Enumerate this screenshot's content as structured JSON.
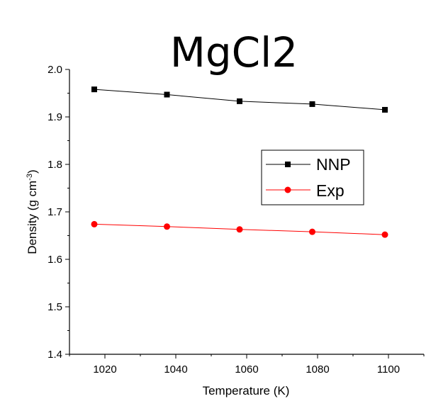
{
  "chart_data": {
    "type": "line",
    "title": "MgCl2",
    "xlabel": "Temperature (K)",
    "ylabel_main": "Density (g cm",
    "ylabel_sup": "-3",
    "ylabel_close": ")",
    "xlim": [
      1010,
      1110
    ],
    "ylim": [
      1.4,
      2.0
    ],
    "xticks": [
      1020,
      1040,
      1060,
      1080,
      1100
    ],
    "yticks": [
      1.4,
      1.5,
      1.6,
      1.7,
      1.8,
      1.9,
      2.0
    ],
    "ytick_labels": [
      "1.4",
      "1.5",
      "1.6",
      "1.7",
      "1.8",
      "1.9",
      "2.0"
    ],
    "legend_position": "right-center",
    "series": [
      {
        "name": "NNP",
        "color": "#000000",
        "marker": "square",
        "x": [
          1017,
          1037.5,
          1058,
          1078.5,
          1099
        ],
        "y": [
          1.958,
          1.947,
          1.933,
          1.927,
          1.915
        ]
      },
      {
        "name": "Exp",
        "color": "#ff0000",
        "marker": "circle",
        "x": [
          1017,
          1037.5,
          1058,
          1078.5,
          1099
        ],
        "y": [
          1.674,
          1.669,
          1.663,
          1.658,
          1.652
        ]
      }
    ]
  }
}
